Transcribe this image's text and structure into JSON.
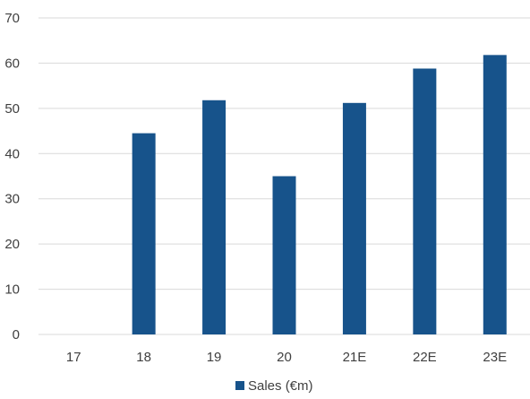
{
  "chart_data": {
    "type": "bar",
    "categories": [
      "17",
      "18",
      "19",
      "20",
      "21E",
      "22E",
      "23E"
    ],
    "series": [
      {
        "name": "Sales (€m)",
        "values": [
          0,
          44.5,
          51.8,
          35.0,
          51.2,
          58.8,
          61.8
        ],
        "color": "#17538b"
      }
    ],
    "title": "",
    "xlabel": "",
    "ylabel": "",
    "ylim": [
      0,
      70
    ],
    "yticks": [
      0,
      10,
      20,
      30,
      40,
      50,
      60,
      70
    ],
    "grid": true,
    "legend": "bottom"
  }
}
